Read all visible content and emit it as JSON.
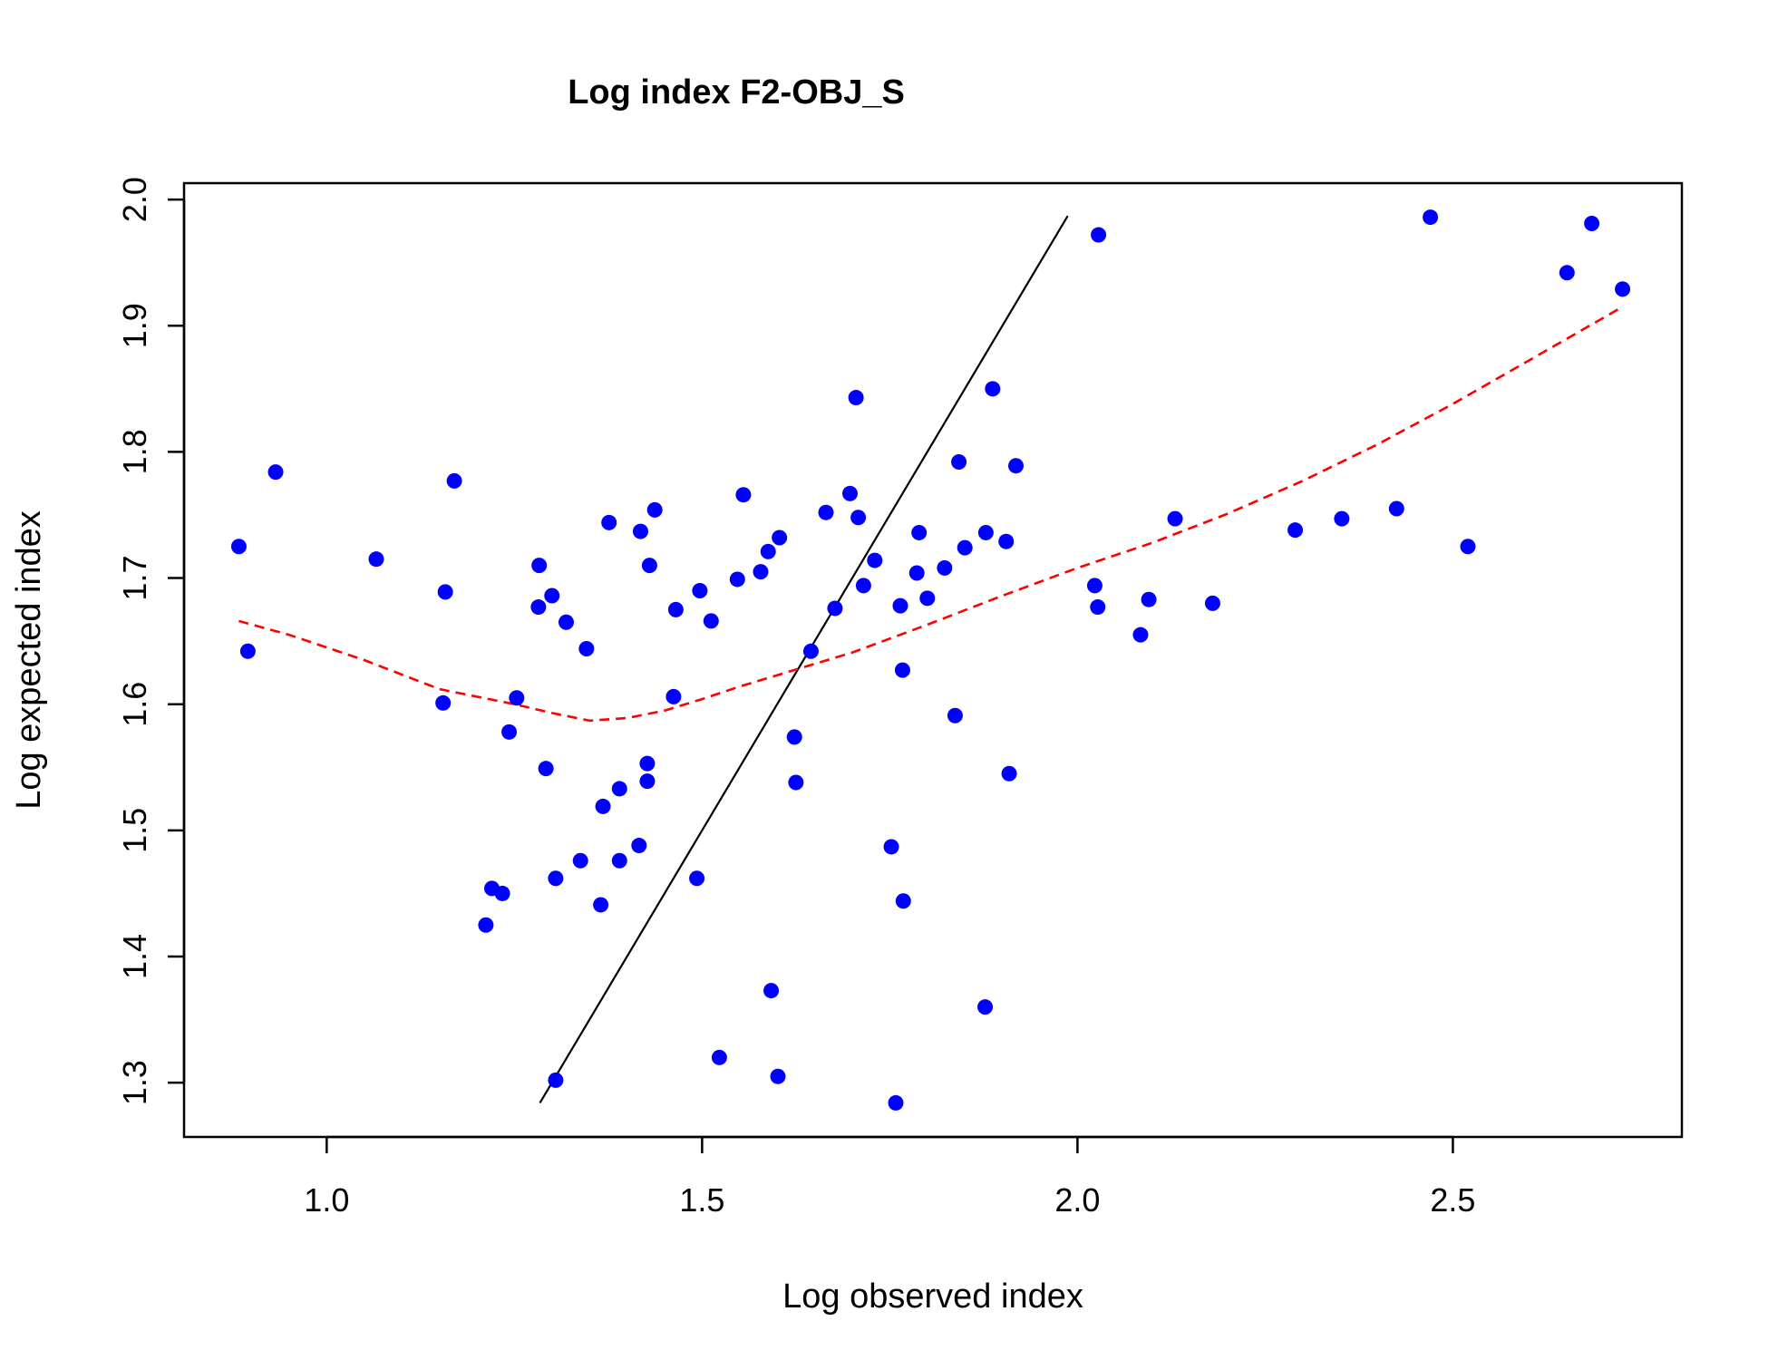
{
  "chart_data": {
    "type": "scatter",
    "title": "Log index F2-OBJ_S",
    "xlabel": "Log observed index",
    "ylabel": "Log expected index",
    "xlim": [
      0.81,
      2.805
    ],
    "ylim": [
      1.257,
      2.013
    ],
    "xticks": [
      "1.0",
      "1.5",
      "2.0",
      "2.5"
    ],
    "yticks": [
      "1.3",
      "1.4",
      "1.5",
      "1.6",
      "1.7",
      "1.8",
      "1.9",
      "2.0"
    ],
    "grid": false,
    "legend": "none",
    "colors": {
      "points": "#0000ff",
      "identity_line": "#000000",
      "smoother": "#ff0000"
    },
    "points": [
      [
        0.883,
        1.725
      ],
      [
        0.895,
        1.642
      ],
      [
        0.932,
        1.784
      ],
      [
        1.066,
        1.715
      ],
      [
        1.155,
        1.601
      ],
      [
        1.158,
        1.689
      ],
      [
        1.17,
        1.777
      ],
      [
        1.212,
        1.425
      ],
      [
        1.22,
        1.454
      ],
      [
        1.234,
        1.45
      ],
      [
        1.243,
        1.578
      ],
      [
        1.253,
        1.605
      ],
      [
        1.282,
        1.677
      ],
      [
        1.283,
        1.71
      ],
      [
        1.292,
        1.549
      ],
      [
        1.3,
        1.686
      ],
      [
        1.305,
        1.462
      ],
      [
        1.305,
        1.302
      ],
      [
        1.319,
        1.665
      ],
      [
        1.338,
        1.476
      ],
      [
        1.346,
        1.644
      ],
      [
        1.365,
        1.441
      ],
      [
        1.368,
        1.519
      ],
      [
        1.376,
        1.744
      ],
      [
        1.39,
        1.476
      ],
      [
        1.39,
        1.533
      ],
      [
        1.416,
        1.488
      ],
      [
        1.418,
        1.737
      ],
      [
        1.427,
        1.539
      ],
      [
        1.427,
        1.553
      ],
      [
        1.43,
        1.71
      ],
      [
        1.437,
        1.754
      ],
      [
        1.462,
        1.606
      ],
      [
        1.465,
        1.675
      ],
      [
        1.493,
        1.462
      ],
      [
        1.497,
        1.69
      ],
      [
        1.512,
        1.666
      ],
      [
        1.523,
        1.32
      ],
      [
        1.547,
        1.699
      ],
      [
        1.555,
        1.766
      ],
      [
        1.578,
        1.705
      ],
      [
        1.588,
        1.721
      ],
      [
        1.592,
        1.373
      ],
      [
        1.601,
        1.305
      ],
      [
        1.603,
        1.732
      ],
      [
        1.623,
        1.574
      ],
      [
        1.625,
        1.538
      ],
      [
        1.645,
        1.642
      ],
      [
        1.665,
        1.752
      ],
      [
        1.677,
        1.676
      ],
      [
        1.697,
        1.767
      ],
      [
        1.705,
        1.843
      ],
      [
        1.708,
        1.748
      ],
      [
        1.715,
        1.694
      ],
      [
        1.73,
        1.714
      ],
      [
        1.752,
        1.487
      ],
      [
        1.758,
        1.284
      ],
      [
        1.764,
        1.678
      ],
      [
        1.767,
        1.627
      ],
      [
        1.768,
        1.444
      ],
      [
        1.786,
        1.704
      ],
      [
        1.789,
        1.736
      ],
      [
        1.8,
        1.684
      ],
      [
        1.823,
        1.708
      ],
      [
        1.837,
        1.591
      ],
      [
        1.842,
        1.792
      ],
      [
        1.85,
        1.724
      ],
      [
        1.877,
        1.36
      ],
      [
        1.878,
        1.736
      ],
      [
        1.887,
        1.85
      ],
      [
        1.905,
        1.729
      ],
      [
        1.909,
        1.545
      ],
      [
        1.918,
        1.789
      ],
      [
        2.023,
        1.694
      ],
      [
        2.027,
        1.677
      ],
      [
        2.028,
        1.972
      ],
      [
        2.084,
        1.655
      ],
      [
        2.095,
        1.683
      ],
      [
        2.13,
        1.747
      ],
      [
        2.18,
        1.68
      ],
      [
        2.29,
        1.738
      ],
      [
        2.352,
        1.747
      ],
      [
        2.425,
        1.755
      ],
      [
        2.47,
        1.986
      ],
      [
        2.52,
        1.725
      ],
      [
        2.652,
        1.942
      ],
      [
        2.685,
        1.981
      ],
      [
        2.726,
        1.929
      ]
    ],
    "identity_line": {
      "x": [
        1.284,
        1.987
      ],
      "y": [
        1.284,
        1.987
      ]
    },
    "smoother": {
      "x": [
        0.883,
        0.95,
        1.05,
        1.15,
        1.25,
        1.3,
        1.35,
        1.4,
        1.45,
        1.5,
        1.55,
        1.6,
        1.65,
        1.7,
        1.8,
        1.9,
        2.0,
        2.1,
        2.2,
        2.3,
        2.4,
        2.5,
        2.6,
        2.726
      ],
      "y": [
        1.666,
        1.655,
        1.635,
        1.612,
        1.6,
        1.593,
        1.587,
        1.589,
        1.595,
        1.604,
        1.614,
        1.623,
        1.632,
        1.641,
        1.663,
        1.686,
        1.708,
        1.728,
        1.751,
        1.777,
        1.806,
        1.838,
        1.872,
        1.915
      ]
    }
  }
}
